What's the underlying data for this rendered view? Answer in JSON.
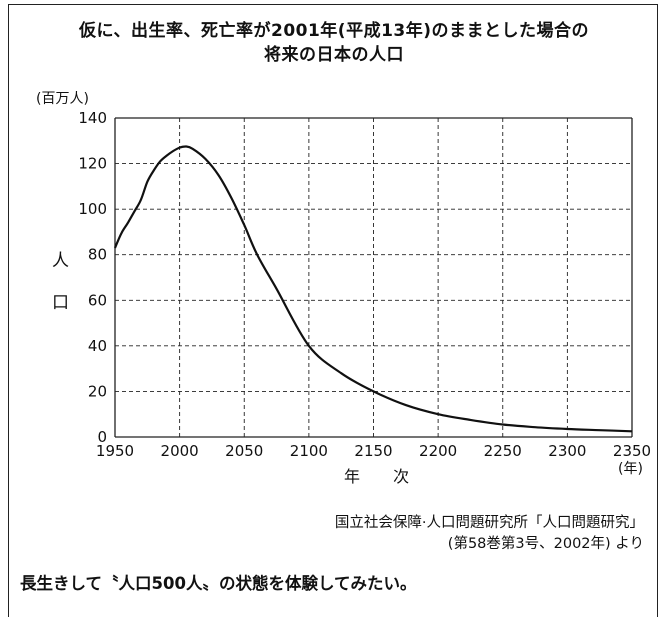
{
  "chart_data": {
    "type": "line",
    "title": "仮に、出生率、死亡率が2001年(平成13年)のままとした場合の",
    "subtitle": "将来の日本の人口",
    "xlabel": "年 次",
    "x_unit": "(年)",
    "ylabel_chars": [
      "人",
      "口"
    ],
    "y_unit": "(百万人)",
    "xlim": [
      1950,
      2350
    ],
    "ylim": [
      0,
      140
    ],
    "x_ticks": [
      1950,
      2000,
      2050,
      2100,
      2150,
      2200,
      2250,
      2300,
      2350
    ],
    "y_ticks": [
      0,
      20,
      40,
      60,
      80,
      100,
      120,
      140
    ],
    "grid": "dashed",
    "series": [
      {
        "x": [
          1950,
          1955,
          1960,
          1965,
          1970,
          1975,
          1980,
          1985,
          1990,
          1995,
          2000,
          2005,
          2010,
          2020,
          2030,
          2040,
          2050,
          2060,
          2075,
          2100,
          2125,
          2150,
          2175,
          2200,
          2225,
          2250,
          2275,
          2300,
          2325,
          2350
        ],
        "y": [
          83,
          89.5,
          94,
          99,
          104,
          112,
          117,
          121,
          123.5,
          125.5,
          127,
          127.5,
          126.5,
          122,
          115,
          105,
          93,
          80,
          65,
          40,
          28,
          20,
          14,
          10,
          7.5,
          5.5,
          4.3,
          3.5,
          3.0,
          2.5
        ]
      }
    ]
  },
  "source": {
    "line1": "国立社会保障·人口問題研究所「人口問題研究」",
    "line2": "(第58巻第3号、2002年) より"
  },
  "footer_text": "長生きして〝人口500人〟の状態を体験してみたい。"
}
